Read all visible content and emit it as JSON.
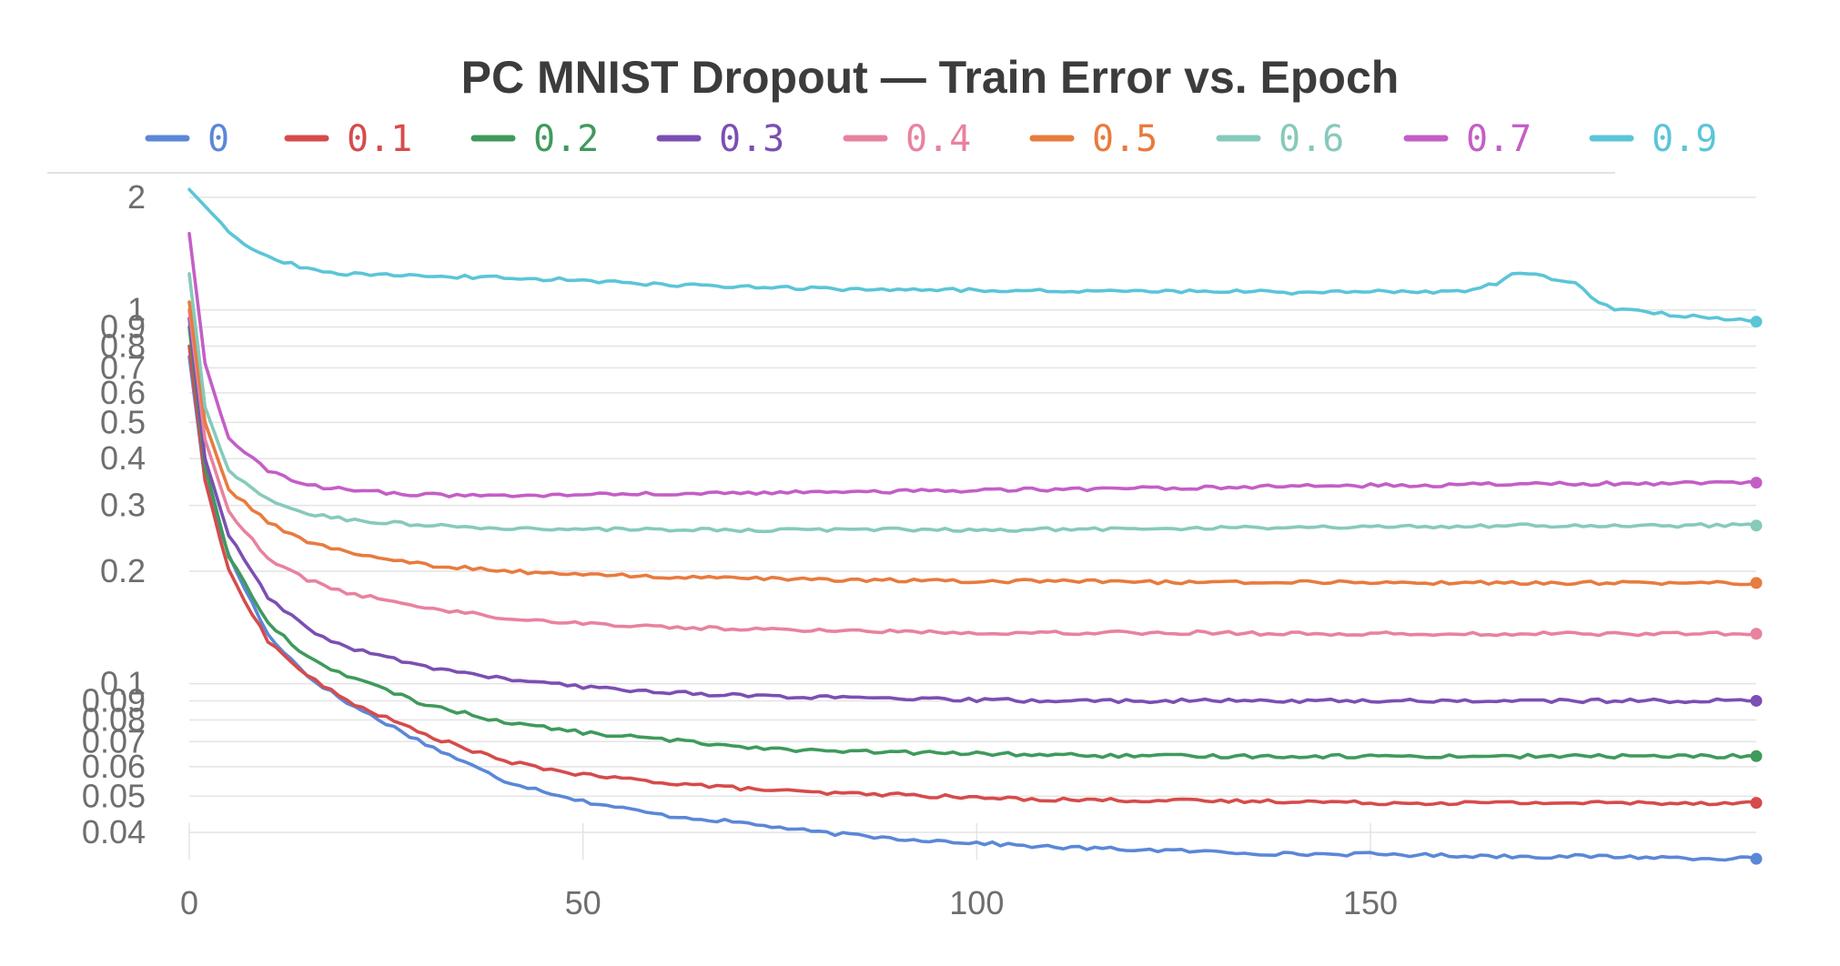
{
  "chart_data": {
    "type": "line",
    "title": "PC MNIST Dropout — Train Error vs. Epoch",
    "xlabel": "",
    "ylabel": "",
    "y_scale": "log",
    "xlim": [
      0,
      199
    ],
    "ylim": [
      0.032,
      2.2
    ],
    "x_ticks": [
      0,
      50,
      100,
      150
    ],
    "y_ticks": [
      0.04,
      0.05,
      0.06,
      0.07,
      0.08,
      0.09,
      0.1,
      0.2,
      0.3,
      0.4,
      0.5,
      0.6,
      0.7,
      0.8,
      0.9,
      1,
      2
    ],
    "y_tick_labels": [
      "0.04",
      "0.05",
      "0.06",
      "0.07",
      "0.08",
      "0.09",
      "0.1",
      "0.2",
      "0.3",
      "0.4",
      "0.5",
      "0.6",
      "0.7",
      "0.8",
      "0.9",
      "1",
      "2"
    ],
    "legend_position": "top",
    "grid": true,
    "series": [
      {
        "name": "0",
        "color": "#5b87d8",
        "final": 0.034,
        "points": [
          [
            0,
            0.75
          ],
          [
            2,
            0.35
          ],
          [
            5,
            0.22
          ],
          [
            10,
            0.135
          ],
          [
            15,
            0.105
          ],
          [
            20,
            0.089
          ],
          [
            30,
            0.069
          ],
          [
            40,
            0.055
          ],
          [
            50,
            0.0485
          ],
          [
            60,
            0.0445
          ],
          [
            70,
            0.0425
          ],
          [
            80,
            0.04
          ],
          [
            90,
            0.0385
          ],
          [
            100,
            0.0375
          ],
          [
            110,
            0.0365
          ],
          [
            120,
            0.036
          ],
          [
            130,
            0.0355
          ],
          [
            140,
            0.035
          ],
          [
            150,
            0.035
          ],
          [
            160,
            0.0347
          ],
          [
            170,
            0.0345
          ],
          [
            180,
            0.0345
          ],
          [
            190,
            0.0342
          ],
          [
            199,
            0.034
          ]
        ]
      },
      {
        "name": "0.1",
        "color": "#d64b4b",
        "final": 0.048,
        "points": [
          [
            0,
            0.8
          ],
          [
            2,
            0.35
          ],
          [
            5,
            0.2
          ],
          [
            10,
            0.13
          ],
          [
            15,
            0.105
          ],
          [
            20,
            0.09
          ],
          [
            30,
            0.073
          ],
          [
            40,
            0.062
          ],
          [
            50,
            0.057
          ],
          [
            60,
            0.0545
          ],
          [
            70,
            0.0525
          ],
          [
            80,
            0.051
          ],
          [
            90,
            0.0505
          ],
          [
            100,
            0.0495
          ],
          [
            110,
            0.049
          ],
          [
            120,
            0.0488
          ],
          [
            130,
            0.0485
          ],
          [
            140,
            0.0485
          ],
          [
            150,
            0.048
          ],
          [
            160,
            0.048
          ],
          [
            170,
            0.048
          ],
          [
            180,
            0.048
          ],
          [
            190,
            0.048
          ],
          [
            199,
            0.048
          ]
        ]
      },
      {
        "name": "0.2",
        "color": "#3f9a5c",
        "final": 0.064,
        "points": [
          [
            0,
            0.9
          ],
          [
            2,
            0.38
          ],
          [
            5,
            0.22
          ],
          [
            10,
            0.145
          ],
          [
            15,
            0.118
          ],
          [
            20,
            0.105
          ],
          [
            30,
            0.088
          ],
          [
            40,
            0.079
          ],
          [
            50,
            0.074
          ],
          [
            60,
            0.071
          ],
          [
            70,
            0.068
          ],
          [
            80,
            0.066
          ],
          [
            90,
            0.0655
          ],
          [
            100,
            0.065
          ],
          [
            110,
            0.0645
          ],
          [
            120,
            0.064
          ],
          [
            130,
            0.064
          ],
          [
            140,
            0.064
          ],
          [
            150,
            0.064
          ],
          [
            160,
            0.064
          ],
          [
            170,
            0.064
          ],
          [
            180,
            0.064
          ],
          [
            190,
            0.064
          ],
          [
            199,
            0.064
          ]
        ]
      },
      {
        "name": "0.3",
        "color": "#7b4fb3",
        "final": 0.09,
        "points": [
          [
            0,
            0.95
          ],
          [
            2,
            0.4
          ],
          [
            5,
            0.25
          ],
          [
            10,
            0.17
          ],
          [
            15,
            0.14
          ],
          [
            20,
            0.125
          ],
          [
            30,
            0.111
          ],
          [
            40,
            0.103
          ],
          [
            50,
            0.098
          ],
          [
            60,
            0.095
          ],
          [
            70,
            0.093
          ],
          [
            80,
            0.092
          ],
          [
            90,
            0.091
          ],
          [
            100,
            0.0905
          ],
          [
            110,
            0.09
          ],
          [
            120,
            0.09
          ],
          [
            130,
            0.09
          ],
          [
            140,
            0.09
          ],
          [
            150,
            0.09
          ],
          [
            160,
            0.09
          ],
          [
            170,
            0.09
          ],
          [
            180,
            0.09
          ],
          [
            190,
            0.09
          ],
          [
            199,
            0.09
          ]
        ]
      },
      {
        "name": "0.4",
        "color": "#e8829f",
        "final": 0.136,
        "points": [
          [
            0,
            1.0
          ],
          [
            2,
            0.45
          ],
          [
            5,
            0.29
          ],
          [
            10,
            0.215
          ],
          [
            15,
            0.19
          ],
          [
            20,
            0.175
          ],
          [
            30,
            0.16
          ],
          [
            40,
            0.15
          ],
          [
            50,
            0.145
          ],
          [
            60,
            0.142
          ],
          [
            70,
            0.14
          ],
          [
            80,
            0.139
          ],
          [
            90,
            0.138
          ],
          [
            100,
            0.137
          ],
          [
            110,
            0.137
          ],
          [
            120,
            0.137
          ],
          [
            130,
            0.137
          ],
          [
            140,
            0.136
          ],
          [
            150,
            0.136
          ],
          [
            160,
            0.136
          ],
          [
            170,
            0.136
          ],
          [
            180,
            0.136
          ],
          [
            190,
            0.136
          ],
          [
            199,
            0.136
          ]
        ]
      },
      {
        "name": "0.5",
        "color": "#e87b3e",
        "final": 0.186,
        "points": [
          [
            0,
            1.05
          ],
          [
            2,
            0.5
          ],
          [
            5,
            0.33
          ],
          [
            10,
            0.27
          ],
          [
            15,
            0.24
          ],
          [
            20,
            0.225
          ],
          [
            30,
            0.208
          ],
          [
            40,
            0.2
          ],
          [
            50,
            0.196
          ],
          [
            60,
            0.193
          ],
          [
            70,
            0.191
          ],
          [
            80,
            0.19
          ],
          [
            90,
            0.189
          ],
          [
            100,
            0.188
          ],
          [
            110,
            0.188
          ],
          [
            120,
            0.187
          ],
          [
            130,
            0.187
          ],
          [
            140,
            0.187
          ],
          [
            150,
            0.187
          ],
          [
            160,
            0.186
          ],
          [
            170,
            0.186
          ],
          [
            180,
            0.186
          ],
          [
            190,
            0.186
          ],
          [
            199,
            0.186
          ]
        ]
      },
      {
        "name": "0.6",
        "color": "#86cabb",
        "final": 0.265,
        "points": [
          [
            0,
            1.25
          ],
          [
            2,
            0.55
          ],
          [
            5,
            0.37
          ],
          [
            10,
            0.31
          ],
          [
            15,
            0.285
          ],
          [
            20,
            0.275
          ],
          [
            30,
            0.265
          ],
          [
            40,
            0.26
          ],
          [
            50,
            0.259
          ],
          [
            60,
            0.258
          ],
          [
            70,
            0.258
          ],
          [
            80,
            0.258
          ],
          [
            90,
            0.258
          ],
          [
            100,
            0.258
          ],
          [
            110,
            0.259
          ],
          [
            120,
            0.26
          ],
          [
            130,
            0.261
          ],
          [
            140,
            0.262
          ],
          [
            150,
            0.263
          ],
          [
            160,
            0.264
          ],
          [
            170,
            0.265
          ],
          [
            180,
            0.265
          ],
          [
            190,
            0.265
          ],
          [
            199,
            0.265
          ]
        ]
      },
      {
        "name": "0.7",
        "color": "#c45ec6",
        "final": 0.345,
        "points": [
          [
            0,
            1.6
          ],
          [
            2,
            0.72
          ],
          [
            5,
            0.45
          ],
          [
            10,
            0.37
          ],
          [
            15,
            0.34
          ],
          [
            20,
            0.33
          ],
          [
            30,
            0.32
          ],
          [
            40,
            0.318
          ],
          [
            50,
            0.32
          ],
          [
            60,
            0.322
          ],
          [
            70,
            0.323
          ],
          [
            80,
            0.325
          ],
          [
            90,
            0.327
          ],
          [
            100,
            0.329
          ],
          [
            110,
            0.331
          ],
          [
            120,
            0.333
          ],
          [
            130,
            0.335
          ],
          [
            140,
            0.337
          ],
          [
            150,
            0.339
          ],
          [
            160,
            0.34
          ],
          [
            170,
            0.342
          ],
          [
            180,
            0.343
          ],
          [
            190,
            0.344
          ],
          [
            199,
            0.345
          ]
        ]
      },
      {
        "name": "0.9",
        "color": "#5bc5d8",
        "final": 0.93,
        "points": [
          [
            0,
            2.1
          ],
          [
            3,
            1.8
          ],
          [
            6,
            1.55
          ],
          [
            10,
            1.38
          ],
          [
            15,
            1.29
          ],
          [
            20,
            1.25
          ],
          [
            30,
            1.23
          ],
          [
            40,
            1.22
          ],
          [
            50,
            1.2
          ],
          [
            60,
            1.17
          ],
          [
            70,
            1.15
          ],
          [
            80,
            1.14
          ],
          [
            90,
            1.135
          ],
          [
            100,
            1.13
          ],
          [
            110,
            1.125
          ],
          [
            120,
            1.125
          ],
          [
            130,
            1.12
          ],
          [
            140,
            1.115
          ],
          [
            150,
            1.12
          ],
          [
            160,
            1.12
          ],
          [
            163,
            1.13
          ],
          [
            166,
            1.18
          ],
          [
            168,
            1.26
          ],
          [
            171,
            1.25
          ],
          [
            173,
            1.2
          ],
          [
            176,
            1.18
          ],
          [
            178,
            1.08
          ],
          [
            181,
            1.0
          ],
          [
            185,
            0.985
          ],
          [
            190,
            0.965
          ],
          [
            195,
            0.945
          ],
          [
            199,
            0.93
          ]
        ]
      }
    ]
  }
}
